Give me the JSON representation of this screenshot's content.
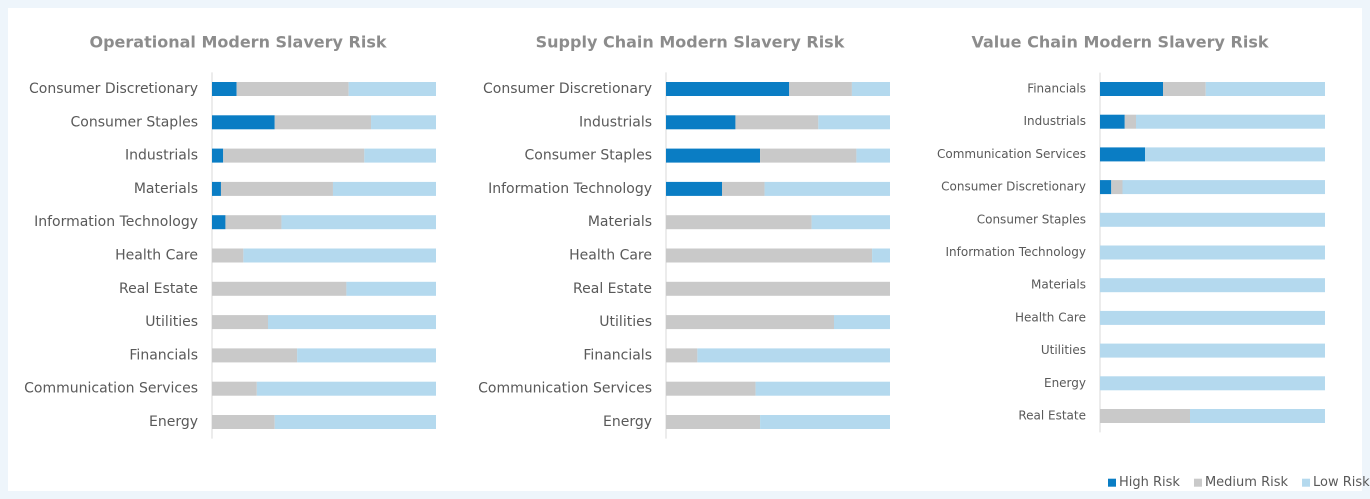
{
  "chart_data": [
    {
      "type": "stacked-bar",
      "title": "Operational Modern Slavery Risk",
      "categories": [
        "Consumer Discretionary",
        "Consumer Staples",
        "Industrials",
        "Materials",
        "Information Technology",
        "Health Care",
        "Real Estate",
        "Utilities",
        "Financials",
        "Communication Services",
        "Energy"
      ],
      "xlim": [
        0,
        100
      ],
      "series": [
        {
          "name": "High Risk",
          "color": "#0a7dc4",
          "values": [
            11,
            28,
            5,
            4,
            6,
            0,
            0,
            0,
            0,
            0,
            0
          ]
        },
        {
          "name": "Medium Risk",
          "color": "#c9c9c9",
          "values": [
            50,
            43,
            63,
            50,
            25,
            14,
            60,
            25,
            38,
            20,
            28
          ]
        },
        {
          "name": "Low Risk",
          "color": "#b4d9ee",
          "values": [
            39,
            29,
            32,
            46,
            69,
            86,
            40,
            75,
            62,
            80,
            72
          ]
        }
      ]
    },
    {
      "type": "stacked-bar",
      "title": "Supply Chain Modern Slavery Risk",
      "categories": [
        "Consumer Discretionary",
        "Industrials",
        "Consumer Staples",
        "Information Technology",
        "Materials",
        "Health Care",
        "Real Estate",
        "Utilities",
        "Financials",
        "Communication Services",
        "Energy"
      ],
      "xlim": [
        0,
        100
      ],
      "series": [
        {
          "name": "High Risk",
          "color": "#0a7dc4",
          "values": [
            55,
            31,
            42,
            25,
            0,
            0,
            0,
            0,
            0,
            0,
            0
          ]
        },
        {
          "name": "Medium Risk",
          "color": "#c9c9c9",
          "values": [
            28,
            37,
            43,
            19,
            65,
            92,
            100,
            75,
            14,
            40,
            42
          ]
        },
        {
          "name": "Low Risk",
          "color": "#b4d9ee",
          "values": [
            17,
            32,
            15,
            56,
            35,
            8,
            0,
            25,
            86,
            60,
            58
          ]
        }
      ]
    },
    {
      "type": "stacked-bar",
      "title": "Value Chain Modern Slavery Risk",
      "categories": [
        "Financials",
        "Industrials",
        "Communication Services",
        "Consumer Discretionary",
        "Consumer Staples",
        "Information Technology",
        "Materials",
        "Health Care",
        "Utilities",
        "Energy",
        "Real Estate"
      ],
      "xlim": [
        0,
        100
      ],
      "legend": "bottom",
      "series": [
        {
          "name": "High Risk",
          "color": "#0a7dc4",
          "values": [
            28,
            11,
            20,
            5,
            0,
            0,
            0,
            0,
            0,
            0,
            0
          ]
        },
        {
          "name": "Medium Risk",
          "color": "#c9c9c9",
          "values": [
            19,
            5,
            0,
            5,
            0,
            0,
            0,
            0,
            0,
            0,
            40
          ]
        },
        {
          "name": "Low Risk",
          "color": "#b4d9ee",
          "values": [
            53,
            84,
            80,
            90,
            100,
            100,
            100,
            100,
            100,
            100,
            60
          ]
        }
      ]
    }
  ]
}
